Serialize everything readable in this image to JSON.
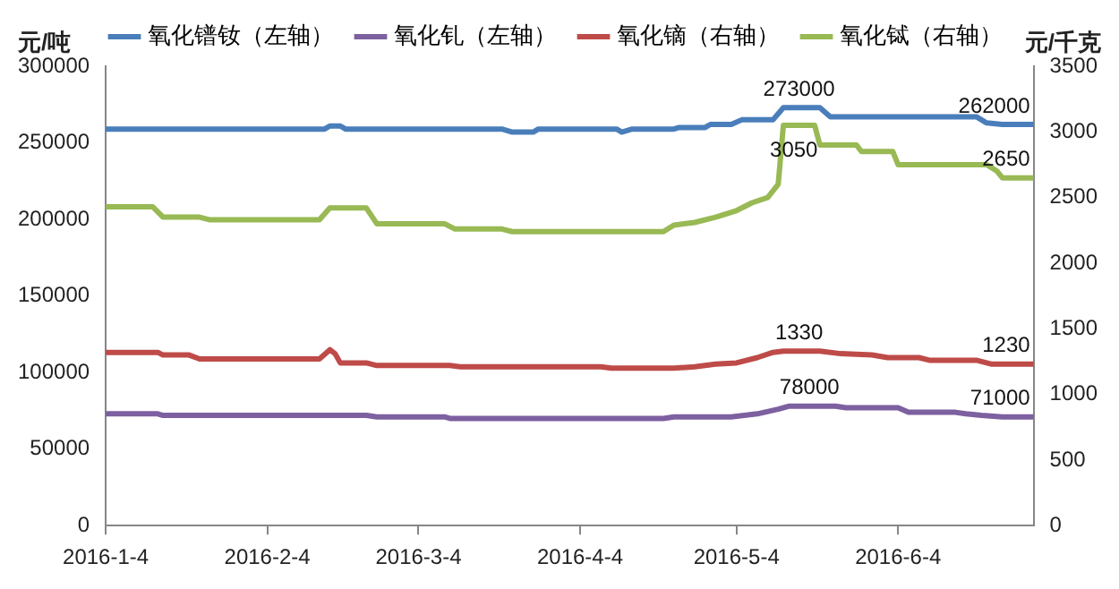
{
  "chart_data": {
    "type": "line",
    "ylabel": "元/吨",
    "y2label": "元/千克",
    "legend": "top",
    "grid": false,
    "marker": "none",
    "line_style": "solid",
    "xlim": [
      "2016-01-04",
      "2016-06-30"
    ],
    "xticks": [
      {
        "value": "2016-01-04",
        "label": "2016-1-4"
      },
      {
        "value": "2016-02-04",
        "label": "2016-2-4"
      },
      {
        "value": "2016-03-04",
        "label": "2016-3-4"
      },
      {
        "value": "2016-04-04",
        "label": "2016-4-4"
      },
      {
        "value": "2016-05-04",
        "label": "2016-5-4"
      },
      {
        "value": "2016-06-04",
        "label": "2016-6-4"
      }
    ],
    "ylim": [
      0,
      300000
    ],
    "yticks": [
      0,
      50000,
      100000,
      150000,
      200000,
      250000,
      300000
    ],
    "y2lim": [
      0,
      3500
    ],
    "y2ticks": [
      0,
      500,
      1000,
      1500,
      2000,
      2500,
      3000,
      3500
    ],
    "series": [
      {
        "name": "氧化镨钕（左轴）",
        "color": "#4a7ebb",
        "axis": "y",
        "x": [
          "2016-01-04",
          "2016-02-15",
          "2016-02-16",
          "2016-02-18",
          "2016-02-19",
          "2016-03-20",
          "2016-03-22",
          "2016-03-26",
          "2016-03-27",
          "2016-04-11",
          "2016-04-12",
          "2016-04-14",
          "2016-04-22",
          "2016-04-23",
          "2016-04-28",
          "2016-04-29",
          "2016-05-03",
          "2016-05-05",
          "2016-05-11",
          "2016-05-13",
          "2016-05-16",
          "2016-05-20",
          "2016-05-22",
          "2016-06-19",
          "2016-06-21",
          "2016-06-24",
          "2016-06-30"
        ],
        "values": [
          259000,
          259000,
          261000,
          261000,
          259000,
          259000,
          257000,
          257000,
          259000,
          259000,
          257000,
          259000,
          259000,
          260000,
          260000,
          262000,
          262000,
          265000,
          265000,
          273000,
          273000,
          273000,
          267000,
          267000,
          263000,
          262000,
          262000
        ],
        "value_labels": [
          null,
          null,
          null,
          null,
          null,
          null,
          null,
          null,
          null,
          null,
          null,
          null,
          null,
          null,
          null,
          null,
          null,
          null,
          null,
          null,
          "273000",
          null,
          null,
          null,
          null,
          null,
          "262000"
        ]
      },
      {
        "name": "氧化钆（左轴）",
        "color": "#7d60a0",
        "axis": "y",
        "x": [
          "2016-01-04",
          "2016-01-14",
          "2016-01-15",
          "2016-02-23",
          "2016-02-25",
          "2016-03-06",
          "2016-03-08",
          "2016-03-09",
          "2016-03-10",
          "2016-04-20",
          "2016-04-22",
          "2016-05-03",
          "2016-05-08",
          "2016-05-12",
          "2016-05-14",
          "2016-05-18",
          "2016-05-23",
          "2016-05-25",
          "2016-06-04",
          "2016-06-06",
          "2016-06-15",
          "2016-06-17",
          "2016-06-20",
          "2016-06-24",
          "2016-06-30"
        ],
        "values": [
          73000,
          73000,
          72000,
          72000,
          71000,
          71000,
          71000,
          71000,
          70000,
          70000,
          71000,
          71000,
          73000,
          76000,
          78000,
          78000,
          78000,
          77000,
          77000,
          74000,
          74000,
          73000,
          72000,
          71000,
          71000
        ],
        "value_labels": [
          null,
          null,
          null,
          null,
          null,
          null,
          null,
          null,
          null,
          null,
          null,
          null,
          null,
          null,
          null,
          "78000",
          null,
          null,
          null,
          null,
          null,
          null,
          null,
          null,
          "71000"
        ]
      },
      {
        "name": "氧化镝（右轴）",
        "color": "#be4b48",
        "axis": "y2",
        "x": [
          "2016-01-04",
          "2016-01-14",
          "2016-01-15",
          "2016-01-20",
          "2016-01-22",
          "2016-02-14",
          "2016-02-16",
          "2016-02-17",
          "2016-02-18",
          "2016-02-23",
          "2016-02-25",
          "2016-03-03",
          "2016-03-10",
          "2016-03-12",
          "2016-04-08",
          "2016-04-10",
          "2016-04-22",
          "2016-04-26",
          "2016-04-30",
          "2016-05-04",
          "2016-05-08",
          "2016-05-11",
          "2016-05-13",
          "2016-05-16",
          "2016-05-20",
          "2016-05-24",
          "2016-05-30",
          "2016-06-02",
          "2016-06-08",
          "2016-06-10",
          "2016-06-19",
          "2016-06-22",
          "2016-06-30"
        ],
        "values": [
          1320,
          1320,
          1300,
          1300,
          1270,
          1270,
          1340,
          1310,
          1240,
          1240,
          1220,
          1220,
          1220,
          1210,
          1210,
          1200,
          1200,
          1210,
          1230,
          1240,
          1280,
          1320,
          1330,
          1330,
          1330,
          1310,
          1300,
          1280,
          1280,
          1260,
          1260,
          1230,
          1230
        ],
        "value_labels": [
          null,
          null,
          null,
          null,
          null,
          null,
          null,
          null,
          null,
          null,
          null,
          null,
          null,
          null,
          null,
          null,
          null,
          null,
          null,
          null,
          null,
          null,
          null,
          "1330",
          null,
          null,
          null,
          null,
          null,
          null,
          null,
          null,
          "1230"
        ]
      },
      {
        "name": "氧化铽（右轴）",
        "color": "#98b954",
        "axis": "y2",
        "x": [
          "2016-01-04",
          "2016-01-13",
          "2016-01-15",
          "2016-01-22",
          "2016-01-24",
          "2016-02-14",
          "2016-02-16",
          "2016-02-23",
          "2016-02-25",
          "2016-03-09",
          "2016-03-11",
          "2016-03-20",
          "2016-03-22",
          "2016-04-20",
          "2016-04-22",
          "2016-04-26",
          "2016-04-30",
          "2016-05-04",
          "2016-05-07",
          "2016-05-10",
          "2016-05-12",
          "2016-05-13",
          "2016-05-15",
          "2016-05-19",
          "2016-05-20",
          "2016-05-27",
          "2016-05-28",
          "2016-06-03",
          "2016-06-04",
          "2016-06-21",
          "2016-06-23",
          "2016-06-24",
          "2016-06-30"
        ],
        "values": [
          2430,
          2430,
          2350,
          2350,
          2330,
          2330,
          2420,
          2420,
          2300,
          2300,
          2260,
          2260,
          2240,
          2240,
          2290,
          2310,
          2350,
          2400,
          2460,
          2500,
          2600,
          3050,
          3050,
          3050,
          2900,
          2900,
          2850,
          2850,
          2750,
          2750,
          2700,
          2650,
          2650
        ],
        "value_labels": [
          null,
          null,
          null,
          null,
          null,
          null,
          null,
          null,
          null,
          null,
          null,
          null,
          null,
          null,
          null,
          null,
          null,
          null,
          null,
          null,
          null,
          null,
          "3050",
          null,
          null,
          null,
          null,
          null,
          null,
          null,
          null,
          null,
          "2650"
        ]
      }
    ]
  }
}
